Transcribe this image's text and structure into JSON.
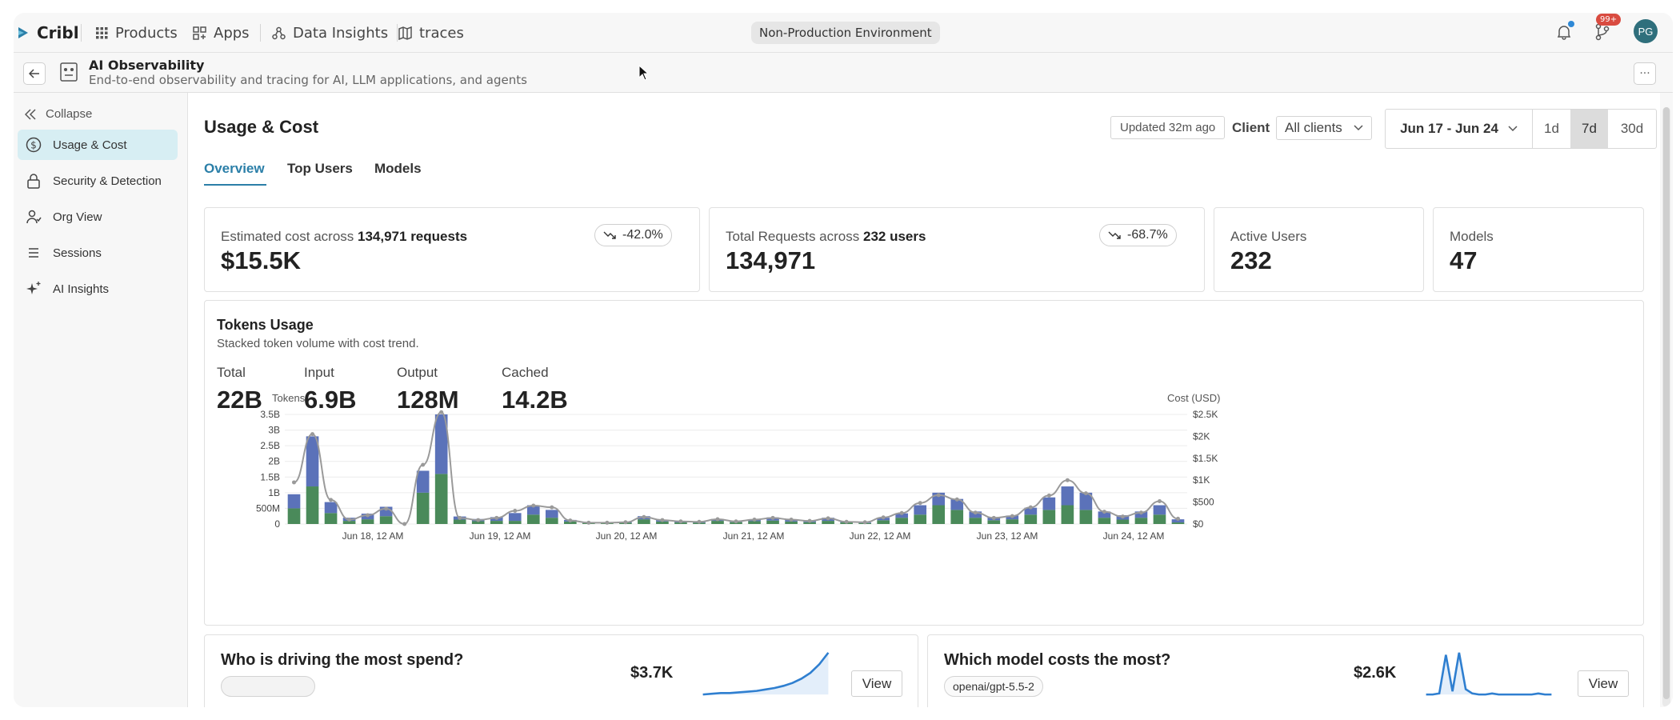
{
  "topbar": {
    "brand": "Cribl",
    "products": "Products",
    "apps": "Apps",
    "data_insights": "Data Insights",
    "traces": "traces",
    "environment": "Non-Production Environment",
    "notif_badge": "99+",
    "avatar_initials": "PG"
  },
  "app": {
    "title": "AI Observability",
    "subtitle": "End-to-end observability and tracing for AI, LLM applications, and agents"
  },
  "sidebar": {
    "collapse": "Collapse",
    "items": [
      {
        "label": "Usage & Cost",
        "icon": "dollar-icon",
        "active": true
      },
      {
        "label": "Security & Detection",
        "icon": "lock-icon"
      },
      {
        "label": "Org View",
        "icon": "org-icon"
      },
      {
        "label": "Sessions",
        "icon": "list-icon"
      },
      {
        "label": "AI Insights",
        "icon": "sparkle-icon"
      }
    ]
  },
  "page": {
    "title": "Usage & Cost",
    "updated": "Updated 32m ago",
    "client_label": "Client",
    "client_value": "All clients",
    "date_range": "Jun 17 - Jun 24",
    "range_buttons": [
      "1d",
      "7d",
      "30d"
    ],
    "range_selected": "7d"
  },
  "tabs": [
    "Overview",
    "Top Users",
    "Models"
  ],
  "kpis": {
    "cost": {
      "prefix": "Estimated cost across",
      "count": "134,971 requests",
      "value": "$15.5K",
      "delta": "-42.0%"
    },
    "requests": {
      "prefix": "Total Requests across",
      "count": "232 users",
      "value": "134,971",
      "delta": "-68.7%"
    },
    "active_users": {
      "label": "Active Users",
      "value": "232"
    },
    "models": {
      "label": "Models",
      "value": "47"
    }
  },
  "tokens": {
    "title": "Tokens Usage",
    "subtitle": "Stacked token volume with cost trend.",
    "stats": [
      {
        "label": "Total",
        "value": "22B"
      },
      {
        "label": "Input",
        "value": "6.9B"
      },
      {
        "label": "Output",
        "value": "128M"
      },
      {
        "label": "Cached",
        "value": "14.2B"
      }
    ]
  },
  "chart_data": {
    "type": "bar",
    "stacked": true,
    "left_axis_label": "Tokens",
    "right_axis_label": "Cost (USD)",
    "y_ticks": [
      "0",
      "500M",
      "1B",
      "1.5B",
      "2B",
      "2.5B",
      "3B",
      "3.5B"
    ],
    "ylim": [
      0,
      3.5
    ],
    "y2_ticks": [
      "$0",
      "$500",
      "$1K",
      "$1.5K",
      "$2K",
      "$2.5K"
    ],
    "y2lim": [
      0,
      2500
    ],
    "x_ticks": [
      "Jun 18, 12 AM",
      "Jun 19, 12 AM",
      "Jun 20, 12 AM",
      "Jun 21, 12 AM",
      "Jun 22, 12 AM",
      "Jun 23, 12 AM",
      "Jun 24, 12 AM"
    ],
    "colors": {
      "input": "#5b72b9",
      "cached": "#4a8a5a",
      "cost_line": "#9a9a9a"
    },
    "series": [
      {
        "name": "Input",
        "values": [
          0.45,
          1.6,
          0.35,
          0.1,
          0.18,
          0.3,
          0,
          0.7,
          1.9,
          0.1,
          0.07,
          0.12,
          0.25,
          0.3,
          0.25,
          0.05,
          0.02,
          0.02,
          0.03,
          0.1,
          0.06,
          0.04,
          0.03,
          0.06,
          0.04,
          0.06,
          0.1,
          0.06,
          0.05,
          0.1,
          0.03,
          0.02,
          0.08,
          0.14,
          0.3,
          0.4,
          0.35,
          0.2,
          0.1,
          0.12,
          0.22,
          0.4,
          0.6,
          0.55,
          0.2,
          0.14,
          0.2,
          0.3,
          0.1
        ]
      },
      {
        "name": "Cached",
        "values": [
          0.5,
          1.2,
          0.35,
          0.1,
          0.15,
          0.25,
          0,
          1.0,
          1.6,
          0.14,
          0.09,
          0.1,
          0.1,
          0.3,
          0.2,
          0.08,
          0.03,
          0.03,
          0.04,
          0.15,
          0.08,
          0.05,
          0.04,
          0.1,
          0.06,
          0.09,
          0.11,
          0.08,
          0.06,
          0.1,
          0.05,
          0.03,
          0.12,
          0.2,
          0.3,
          0.6,
          0.45,
          0.2,
          0.12,
          0.15,
          0.3,
          0.45,
          0.6,
          0.45,
          0.2,
          0.14,
          0.2,
          0.3,
          0.05
        ]
      },
      {
        "name": "Cost",
        "axis": "right",
        "values": [
          950,
          2050,
          550,
          100,
          200,
          350,
          0,
          1350,
          2550,
          140,
          90,
          140,
          300,
          420,
          380,
          80,
          30,
          30,
          40,
          160,
          90,
          60,
          50,
          110,
          60,
          100,
          140,
          100,
          70,
          130,
          50,
          40,
          150,
          250,
          480,
          660,
          560,
          260,
          140,
          180,
          380,
          650,
          1000,
          700,
          280,
          170,
          260,
          520,
          120
        ]
      }
    ]
  },
  "spend": {
    "title": "Who is driving the most spend?",
    "value": "$3.7K",
    "button": "View",
    "trend": [
      2,
      3,
      4,
      4,
      5,
      6,
      7,
      9,
      11,
      14,
      18,
      24,
      32,
      44,
      60
    ]
  },
  "model_cost": {
    "title": "Which model costs the most?",
    "model": "openai/gpt-5.5-2",
    "value": "$2.6K",
    "button": "View",
    "trend": [
      3,
      3,
      4,
      40,
      6,
      42,
      8,
      4,
      3,
      3,
      4,
      3,
      3,
      3,
      3,
      3,
      3,
      4,
      3,
      3
    ]
  }
}
